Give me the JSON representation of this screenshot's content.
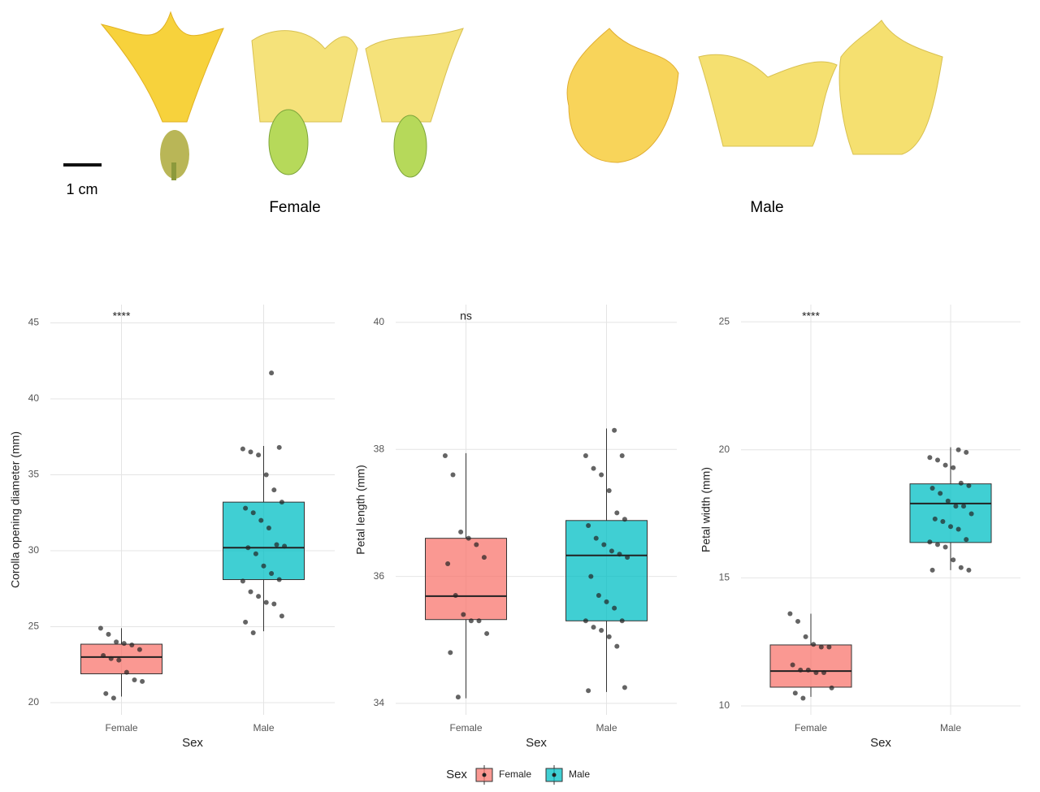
{
  "figure": {
    "scale_label": "1 cm",
    "panel_labels": [
      "Female",
      "Male"
    ],
    "legend_title": "Sex"
  },
  "chart_data": [
    {
      "type": "box",
      "ylabel": "Corolla opening diameter (mm)",
      "xlabel": "Sex",
      "annotation": "****",
      "categories": [
        "Female",
        "Male"
      ],
      "ylim": [
        19.2,
        46.2
      ],
      "yticks": [
        20,
        25,
        30,
        35,
        40,
        45
      ],
      "grid": true,
      "series": [
        {
          "name": "Female",
          "color": "#f8766d",
          "whislo": 20.4,
          "q1": 21.9,
          "med": 23.0,
          "q3": 23.85,
          "whishi": 24.9,
          "points": [
            24.9,
            24.5,
            24.0,
            23.9,
            23.8,
            23.5,
            23.1,
            22.9,
            22.8,
            22.0,
            21.5,
            21.4,
            20.6,
            20.3
          ]
        },
        {
          "name": "Male",
          "color": "#00bfc4",
          "whislo": 24.7,
          "q1": 28.1,
          "med": 30.2,
          "q3": 33.2,
          "whishi": 36.9,
          "points": [
            41.7,
            36.8,
            36.7,
            36.5,
            36.3,
            35.0,
            34.0,
            33.2,
            32.8,
            32.5,
            32.0,
            31.5,
            30.4,
            30.3,
            30.2,
            29.8,
            29.0,
            28.5,
            28.1,
            28.0,
            27.3,
            27.0,
            26.6,
            26.5,
            25.7,
            25.3,
            24.6
          ]
        }
      ]
    },
    {
      "type": "box",
      "ylabel": "Petal length (mm)",
      "xlabel": "Sex",
      "annotation": "ns",
      "categories": [
        "Female",
        "Male"
      ],
      "ylim": [
        33.82,
        40.28
      ],
      "yticks": [
        34,
        36,
        38,
        40
      ],
      "grid": true,
      "series": [
        {
          "name": "Female",
          "color": "#f8766d",
          "whislo": 34.08,
          "q1": 35.32,
          "med": 35.69,
          "q3": 36.6,
          "whishi": 37.94,
          "points": [
            37.9,
            37.6,
            36.7,
            36.6,
            36.5,
            36.3,
            36.2,
            35.7,
            35.4,
            35.3,
            35.3,
            35.1,
            34.8,
            34.1
          ]
        },
        {
          "name": "Male",
          "color": "#00bfc4",
          "whislo": 34.18,
          "q1": 35.3,
          "med": 36.33,
          "q3": 36.88,
          "whishi": 38.33,
          "points": [
            38.3,
            37.9,
            37.9,
            37.7,
            37.6,
            37.35,
            37.0,
            36.9,
            36.8,
            36.6,
            36.5,
            36.4,
            36.35,
            36.3,
            36.0,
            35.7,
            35.6,
            35.5,
            35.3,
            35.3,
            35.2,
            35.15,
            35.05,
            34.9,
            34.25,
            34.2
          ]
        }
      ]
    },
    {
      "type": "box",
      "ylabel": "Petal width (mm)",
      "xlabel": "Sex",
      "annotation": "****",
      "categories": [
        "Female",
        "Male"
      ],
      "ylim": [
        9.65,
        25.67
      ],
      "yticks": [
        10,
        15,
        20,
        25
      ],
      "grid": true,
      "series": [
        {
          "name": "Female",
          "color": "#f8766d",
          "whislo": 10.35,
          "q1": 10.73,
          "med": 11.36,
          "q3": 12.38,
          "whishi": 13.6,
          "points": [
            13.6,
            13.3,
            12.7,
            12.4,
            12.3,
            12.3,
            11.6,
            11.4,
            11.4,
            11.3,
            11.3,
            10.7,
            10.5,
            10.3
          ]
        },
        {
          "name": "Male",
          "color": "#00bfc4",
          "whislo": 15.3,
          "q1": 16.38,
          "med": 17.9,
          "q3": 18.67,
          "whishi": 20.1,
          "points": [
            20.0,
            19.9,
            19.7,
            19.6,
            19.4,
            19.3,
            18.7,
            18.6,
            18.5,
            18.3,
            18.0,
            17.8,
            17.8,
            17.5,
            17.3,
            17.2,
            17.0,
            16.9,
            16.5,
            16.4,
            16.3,
            16.2,
            15.7,
            15.4,
            15.3,
            15.3
          ]
        }
      ]
    }
  ]
}
